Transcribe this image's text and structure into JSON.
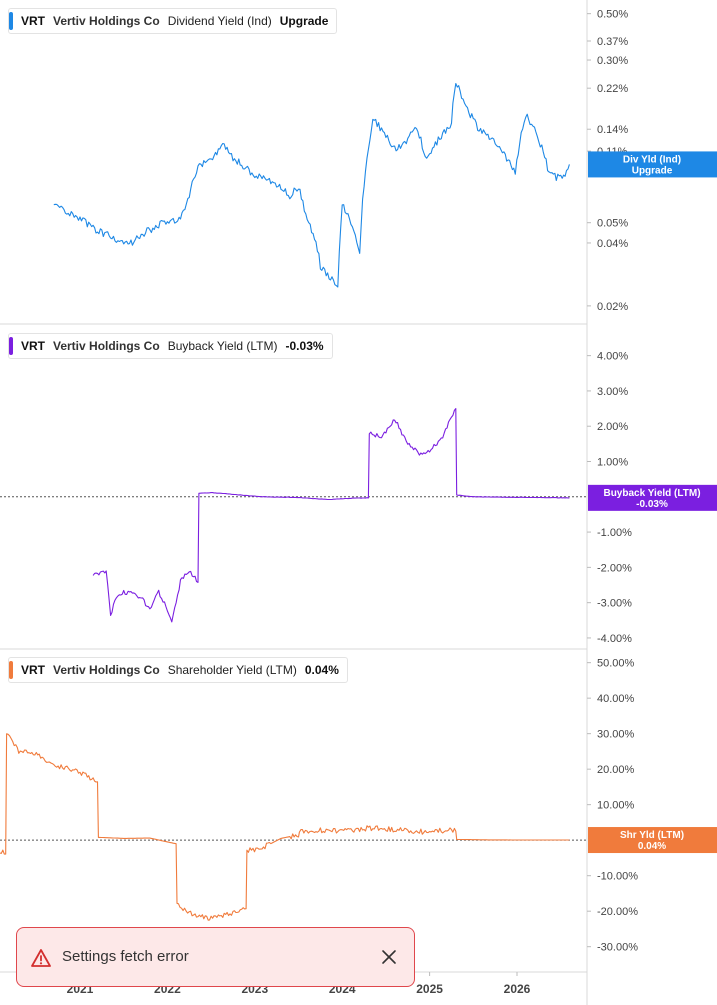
{
  "panels": [
    {
      "legend": {
        "ticker": "VRT",
        "company": "Vertiv Holdings Co",
        "metric": "Dividend Yield (Ind)",
        "value": "Upgrade"
      },
      "badge": {
        "line1": "Div Yld (Ind)",
        "line2": "Upgrade"
      }
    },
    {
      "legend": {
        "ticker": "VRT",
        "company": "Vertiv Holdings Co",
        "metric": "Buyback Yield (LTM)",
        "value": "-0.03%"
      },
      "badge": {
        "line1": "Buyback Yield (LTM)",
        "line2": "-0.03%"
      }
    },
    {
      "legend": {
        "ticker": "VRT",
        "company": "Vertiv Holdings Co",
        "metric": "Shareholder Yield (LTM)",
        "value": "0.04%"
      },
      "badge": {
        "line1": "Shr Yld (LTM)",
        "line2": "0.04%"
      }
    }
  ],
  "toast": {
    "message": "Settings fetch error"
  },
  "colors": {
    "div": "#1e88e5",
    "buyback": "#7b1fe0",
    "shareholder": "#f07b3c",
    "toast_border": "#e0474c",
    "toast_bg": "#fde8e8"
  },
  "chart_data": [
    {
      "type": "line",
      "name": "Dividend Yield (Ind)",
      "y_scale": "log",
      "ylim": [
        0.0175,
        0.55
      ],
      "yticks": [
        "0.50%",
        "0.37%",
        "0.30%",
        "0.22%",
        "0.14%",
        "0.11%",
        "0.05%",
        "0.04%",
        "0.02%"
      ],
      "ytick_values": [
        0.5,
        0.37,
        0.3,
        0.22,
        0.14,
        0.11,
        0.05,
        0.04,
        0.02
      ],
      "x": [
        2020.7,
        2020.85,
        2021.0,
        2021.2,
        2021.45,
        2021.6,
        2021.75,
        2021.95,
        2022.1,
        2022.2,
        2022.35,
        2022.5,
        2022.65,
        2022.75,
        2022.9,
        2023.0,
        2023.15,
        2023.3,
        2023.4,
        2023.5,
        2023.6,
        2023.7,
        2023.75,
        2023.85,
        2023.95,
        2024.0,
        2024.05,
        2024.2,
        2024.35,
        2024.5,
        2024.6,
        2024.7,
        2024.85,
        2024.95,
        2025.1,
        2025.25,
        2025.3,
        2025.4,
        2025.55,
        2025.7,
        2025.85,
        2025.98,
        2026.1,
        2026.2,
        2026.35,
        2026.45,
        2026.55,
        2026.6
      ],
      "y": [
        0.062,
        0.057,
        0.052,
        0.046,
        0.041,
        0.04,
        0.045,
        0.05,
        0.051,
        0.056,
        0.092,
        0.102,
        0.118,
        0.102,
        0.091,
        0.084,
        0.081,
        0.074,
        0.067,
        0.075,
        0.051,
        0.041,
        0.031,
        0.028,
        0.024,
        0.06,
        0.056,
        0.036,
        0.155,
        0.133,
        0.112,
        0.118,
        0.145,
        0.102,
        0.124,
        0.15,
        0.24,
        0.183,
        0.143,
        0.128,
        0.106,
        0.086,
        0.163,
        0.142,
        0.092,
        0.082,
        0.085,
        0.095
      ]
    },
    {
      "type": "line",
      "name": "Buyback Yield (LTM)",
      "ylim": [
        -4.2,
        4.5
      ],
      "yticks": [
        "4.00%",
        "3.00%",
        "2.00%",
        "1.00%",
        "-1.00%",
        "-2.00%",
        "-3.00%",
        "-4.00%"
      ],
      "ytick_values": [
        4,
        3,
        2,
        1,
        -1,
        -2,
        -3,
        -4
      ],
      "x": [
        2021.15,
        2021.3,
        2021.35,
        2021.4,
        2021.5,
        2021.6,
        2021.7,
        2021.8,
        2021.9,
        2022.0,
        2022.05,
        2022.15,
        2022.25,
        2022.35,
        2022.36,
        2022.5,
        2022.8,
        2023.1,
        2023.5,
        2023.85,
        2024.1,
        2024.3,
        2024.31,
        2024.45,
        2024.6,
        2024.75,
        2024.9,
        2025.0,
        2025.15,
        2025.25,
        2025.3,
        2025.31,
        2025.5,
        2026.6
      ],
      "y": [
        -2.2,
        -2.1,
        -3.4,
        -2.9,
        -2.7,
        -2.75,
        -2.85,
        -3.2,
        -2.7,
        -3.2,
        -3.5,
        -2.4,
        -2.1,
        -2.4,
        0.1,
        0.12,
        0.06,
        0.0,
        -0.02,
        -0.08,
        -0.04,
        -0.03,
        1.8,
        1.7,
        2.2,
        1.5,
        1.2,
        1.3,
        1.7,
        2.3,
        2.5,
        0.05,
        0.0,
        -0.03
      ]
    },
    {
      "type": "line",
      "name": "Shareholder Yield (LTM)",
      "ylim": [
        -36,
        53
      ],
      "yticks": [
        "50.00%",
        "40.00%",
        "30.00%",
        "20.00%",
        "10.00%",
        "-10.00%",
        "-20.00%",
        "-30.00%"
      ],
      "ytick_values": [
        50,
        40,
        30,
        20,
        10,
        -10,
        -20,
        -30
      ],
      "x": [
        2020.0,
        2020.15,
        2020.16,
        2020.3,
        2020.5,
        2020.7,
        2020.9,
        2021.1,
        2021.2,
        2021.21,
        2021.5,
        2021.8,
        2022.0,
        2022.1,
        2022.11,
        2022.3,
        2022.5,
        2022.7,
        2022.85,
        2022.9,
        2022.91,
        2023.1,
        2023.3,
        2023.5,
        2023.51,
        2023.7,
        2024.0,
        2024.3,
        2024.6,
        2024.9,
        2025.1,
        2025.3,
        2025.31,
        2025.6,
        2026.0,
        2026.6
      ],
      "y": [
        -3.5,
        -3.5,
        30,
        25,
        24,
        21,
        20,
        18,
        16,
        0.8,
        0.5,
        0.6,
        -0.5,
        -1,
        -18,
        -21,
        -22,
        -21,
        -20,
        -19,
        -3,
        -2,
        0.5,
        1.5,
        2.3,
        2.8,
        2.5,
        3.4,
        3.0,
        2.4,
        2.6,
        2.9,
        0.2,
        0.1,
        0.05,
        0.04
      ]
    }
  ],
  "x_axis": {
    "labels": [
      "2021",
      "2022",
      "2023",
      "2024",
      "2025",
      "2026"
    ],
    "values": [
      2021,
      2022,
      2023,
      2024,
      2025,
      2026
    ]
  }
}
